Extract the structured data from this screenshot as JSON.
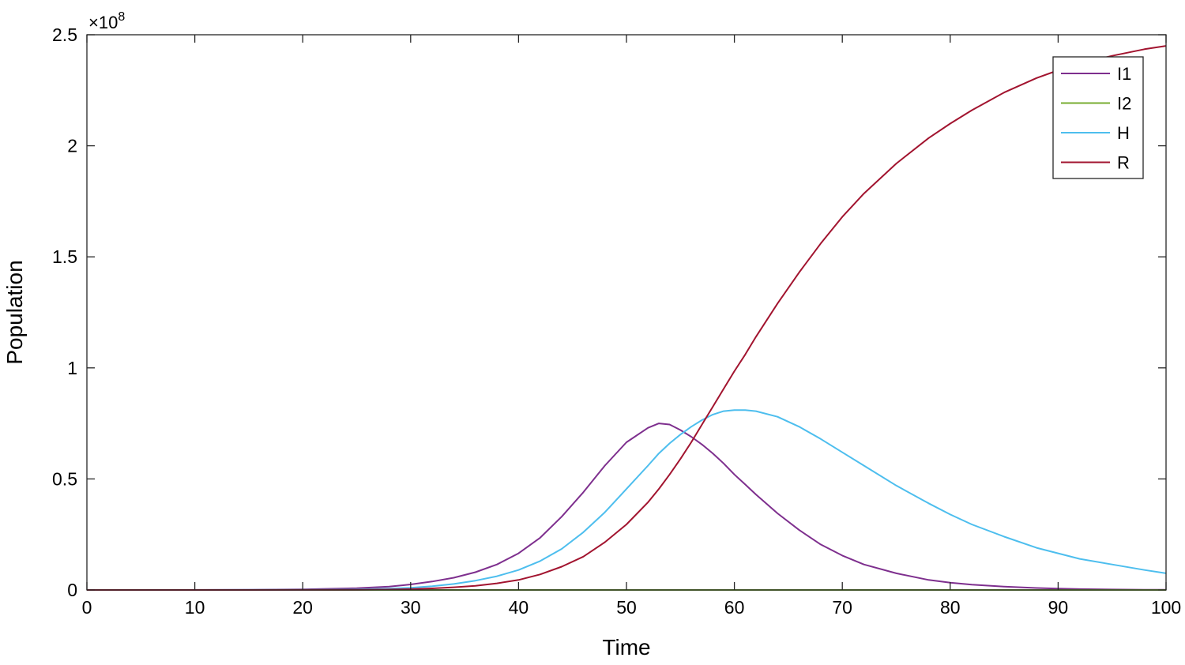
{
  "chart_data": {
    "type": "line",
    "xlabel": "Time",
    "ylabel": "Population",
    "y_exponent_label": "×10",
    "y_exponent": "8",
    "xlim": [
      0,
      100
    ],
    "ylim": [
      0,
      2.5
    ],
    "y_scale": 100000000.0,
    "x_ticks": [
      0,
      10,
      20,
      30,
      40,
      50,
      60,
      70,
      80,
      90,
      100
    ],
    "y_ticks": [
      0,
      0.5,
      1,
      1.5,
      2,
      2.5
    ],
    "y_tick_labels": [
      "0",
      "0.5",
      "1",
      "1.5",
      "2",
      "2.5"
    ],
    "grid": false,
    "legend_position": "top-right",
    "x": [
      0,
      5,
      10,
      15,
      20,
      25,
      28,
      30,
      32,
      34,
      36,
      38,
      40,
      42,
      44,
      46,
      48,
      50,
      52,
      53,
      54,
      55,
      56,
      57,
      58,
      59,
      60,
      61,
      62,
      64,
      66,
      68,
      70,
      72,
      75,
      78,
      80,
      82,
      85,
      88,
      90,
      92,
      95,
      98,
      100
    ],
    "series": [
      {
        "name": "I1",
        "color": "#7E2F8E",
        "values": [
          0,
          0,
          0.0005,
          0.001,
          0.003,
          0.008,
          0.015,
          0.025,
          0.038,
          0.055,
          0.08,
          0.115,
          0.165,
          0.235,
          0.33,
          0.44,
          0.56,
          0.665,
          0.73,
          0.75,
          0.745,
          0.72,
          0.69,
          0.655,
          0.615,
          0.57,
          0.52,
          0.475,
          0.43,
          0.345,
          0.27,
          0.205,
          0.155,
          0.115,
          0.075,
          0.045,
          0.033,
          0.024,
          0.015,
          0.009,
          0.006,
          0.004,
          0.002,
          0.0012,
          0.0008
        ]
      },
      {
        "name": "I2",
        "color": "#77AC30",
        "values": [
          0,
          0,
          0,
          0,
          0,
          0,
          0,
          0,
          0,
          0,
          0,
          0,
          0,
          0,
          0,
          0,
          0,
          0,
          0,
          0,
          0,
          0,
          0,
          0,
          0,
          0,
          0,
          0,
          0,
          0,
          0,
          0,
          0,
          0,
          0,
          0,
          0,
          0,
          0,
          0,
          0,
          0,
          0,
          0,
          0
        ]
      },
      {
        "name": "H",
        "color": "#4DBEEE",
        "values": [
          0,
          0,
          0,
          0.0005,
          0.001,
          0.003,
          0.006,
          0.01,
          0.017,
          0.027,
          0.042,
          0.062,
          0.09,
          0.13,
          0.185,
          0.26,
          0.35,
          0.455,
          0.56,
          0.615,
          0.66,
          0.7,
          0.735,
          0.765,
          0.79,
          0.805,
          0.81,
          0.81,
          0.805,
          0.78,
          0.735,
          0.68,
          0.62,
          0.56,
          0.47,
          0.39,
          0.34,
          0.295,
          0.24,
          0.19,
          0.165,
          0.14,
          0.115,
          0.09,
          0.075
        ]
      },
      {
        "name": "R",
        "color": "#A2142F",
        "values": [
          0,
          0,
          0,
          0,
          0.0005,
          0.001,
          0.002,
          0.004,
          0.007,
          0.012,
          0.019,
          0.03,
          0.045,
          0.07,
          0.105,
          0.15,
          0.215,
          0.295,
          0.395,
          0.455,
          0.52,
          0.59,
          0.665,
          0.745,
          0.825,
          0.905,
          0.985,
          1.06,
          1.14,
          1.29,
          1.43,
          1.56,
          1.68,
          1.785,
          1.92,
          2.035,
          2.1,
          2.16,
          2.24,
          2.305,
          2.34,
          2.37,
          2.405,
          2.435,
          2.45
        ]
      }
    ]
  }
}
